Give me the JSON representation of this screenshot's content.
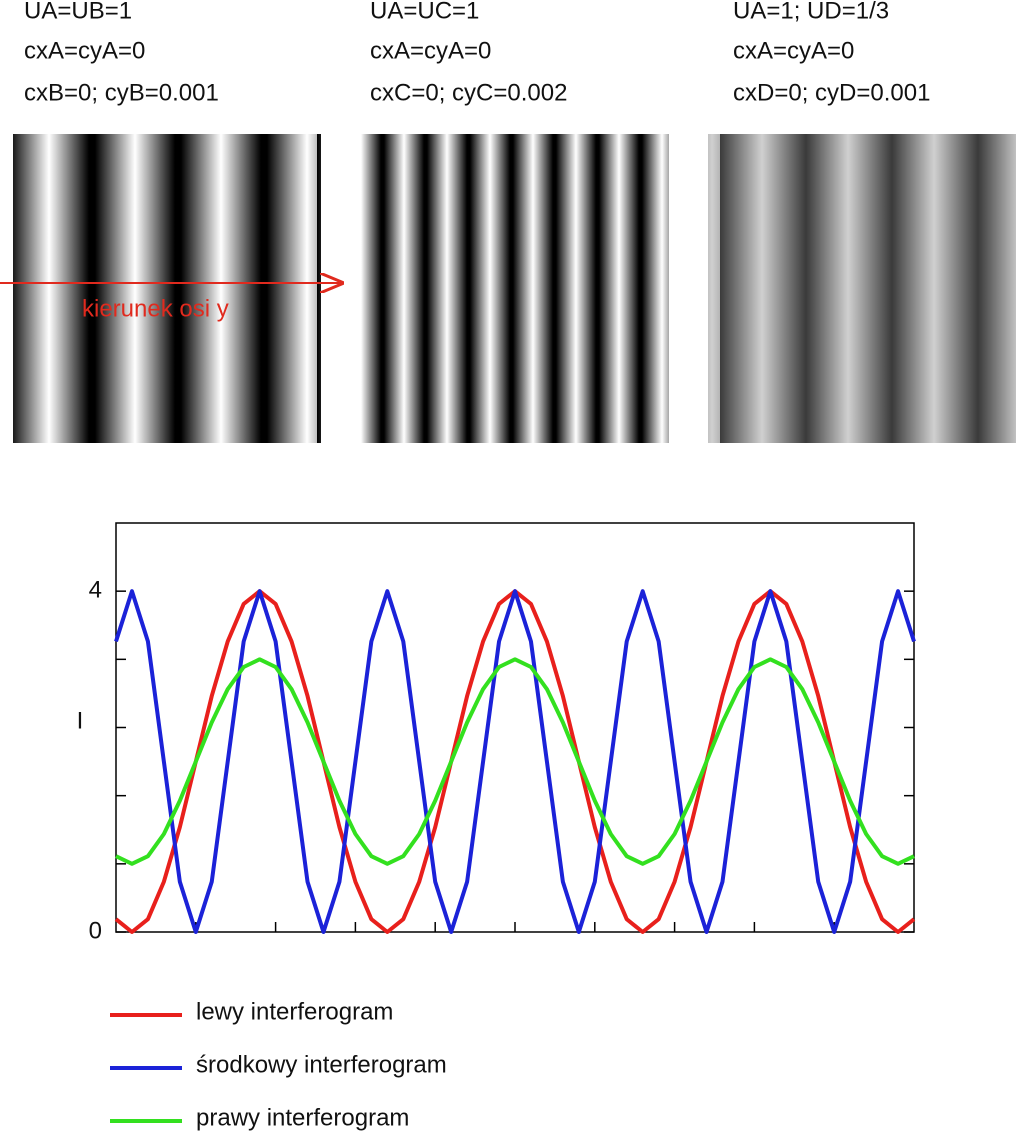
{
  "panels": [
    {
      "lines": [
        "UA=UB=1",
        "cxA=cyA=0",
        "cxB=0; cyB=0.001"
      ]
    },
    {
      "lines": [
        "UA=UC=1",
        "cxA=cyA=0",
        "cxC=0; cyC=0.002"
      ]
    },
    {
      "lines": [
        "UA=1; UD=1/3",
        "cxA=cyA=0",
        "cxD=0; cyD=0.001"
      ]
    }
  ],
  "annotation": "kierunek osi y",
  "chart_data": {
    "type": "line",
    "y_label": "I",
    "xlim": [
      0,
      10
    ],
    "xminor_ticks": [
      1,
      2,
      3,
      4,
      5,
      6,
      7,
      8,
      9
    ],
    "ylim": [
      0,
      4.8
    ],
    "yticks": [
      0,
      4
    ],
    "yminor_ticks": [
      0.8,
      1.6,
      2.4,
      3.2
    ],
    "legend": "bottom",
    "x": [
      0,
      0.2,
      0.4,
      0.6,
      0.8,
      1,
      1.2,
      1.4,
      1.6,
      1.8,
      2,
      2.2,
      2.4,
      2.6,
      2.8,
      3,
      3.2,
      3.4,
      3.6,
      3.8,
      4,
      4.2,
      4.4,
      4.6,
      4.8,
      5,
      5.2,
      5.4,
      5.6,
      5.8,
      6,
      6.2,
      6.4,
      6.6,
      6.8,
      7,
      7.2,
      7.4,
      7.6,
      7.8,
      8,
      8.2,
      8.4,
      8.6,
      8.8,
      9,
      9.2,
      9.4,
      9.6,
      9.8,
      10
    ],
    "series": [
      {
        "name": "lewy interferogram",
        "color": "#e8201c",
        "values": [
          0.15,
          0,
          0.15,
          0.59,
          1.23,
          2,
          2.77,
          3.41,
          3.85,
          4,
          3.85,
          3.41,
          2.77,
          2,
          1.23,
          0.59,
          0.15,
          0,
          0.15,
          0.59,
          1.23,
          2,
          2.77,
          3.41,
          3.85,
          4,
          3.85,
          3.41,
          2.77,
          2,
          1.23,
          0.59,
          0.15,
          0,
          0.15,
          0.59,
          1.23,
          2,
          2.77,
          3.41,
          3.85,
          4,
          3.85,
          3.41,
          2.77,
          2,
          1.23,
          0.59,
          0.15,
          0,
          0.15
        ]
      },
      {
        "name": "środkowy interferogram",
        "color": "#1b22d8",
        "values": [
          3.41,
          4,
          3.41,
          2,
          0.59,
          0,
          0.59,
          2,
          3.41,
          4,
          3.41,
          2,
          0.59,
          0,
          0.59,
          2,
          3.41,
          4,
          3.41,
          2,
          0.59,
          0,
          0.59,
          2,
          3.41,
          4,
          3.41,
          2,
          0.59,
          0,
          0.59,
          2,
          3.41,
          4,
          3.41,
          2,
          0.59,
          0,
          0.59,
          2,
          3.41,
          4,
          3.41,
          2,
          0.59,
          0,
          0.59,
          2,
          3.41,
          4,
          3.41
        ]
      },
      {
        "name": "prawy interferogram",
        "color": "#33e01f",
        "values": [
          0.89,
          0.8,
          0.89,
          1.15,
          1.54,
          2,
          2.46,
          2.85,
          3.11,
          3.2,
          3.11,
          2.85,
          2.46,
          2,
          1.54,
          1.15,
          0.89,
          0.8,
          0.89,
          1.15,
          1.54,
          2,
          2.46,
          2.85,
          3.11,
          3.2,
          3.11,
          2.85,
          2.46,
          2,
          1.54,
          1.15,
          0.89,
          0.8,
          0.89,
          1.15,
          1.54,
          2,
          2.46,
          2.85,
          3.11,
          3.2,
          3.11,
          2.85,
          2.46,
          2,
          1.54,
          1.15,
          0.89,
          0.8,
          0.89
        ]
      }
    ]
  }
}
